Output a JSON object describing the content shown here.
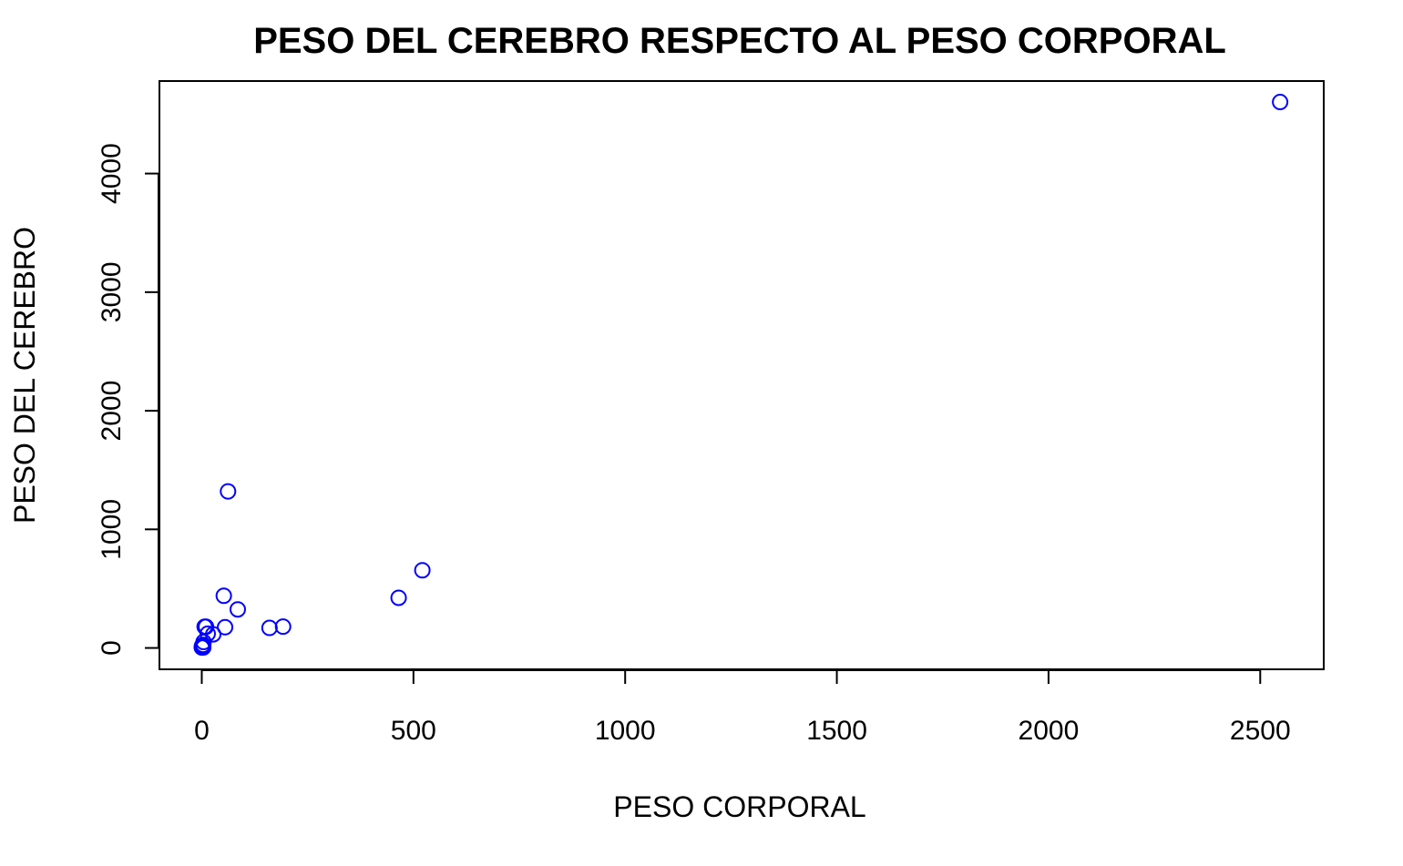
{
  "chart_data": {
    "type": "scatter",
    "title": "PESO DEL CEREBRO RESPECTO AL PESO CORPORAL",
    "xlabel": "PESO CORPORAL",
    "ylabel": "PESO DEL CEREBRO",
    "xlim": [
      -100,
      2650
    ],
    "ylim": [
      -180,
      4780
    ],
    "x_ticks": [
      0,
      500,
      1000,
      1500,
      2000,
      2500
    ],
    "y_ticks": [
      0,
      1000,
      2000,
      3000,
      4000
    ],
    "x_tick_labels": [
      "0",
      "500",
      "1000",
      "1500",
      "2000",
      "2500"
    ],
    "y_tick_labels": [
      "0",
      "1000",
      "2000",
      "3000",
      "4000"
    ],
    "grid": false,
    "point_color": "#0000ff",
    "points": [
      {
        "x": 2547,
        "y": 4603
      },
      {
        "x": 62,
        "y": 1320
      },
      {
        "x": 521,
        "y": 655
      },
      {
        "x": 465,
        "y": 423
      },
      {
        "x": 52,
        "y": 440
      },
      {
        "x": 85,
        "y": 325
      },
      {
        "x": 192,
        "y": 180
      },
      {
        "x": 160,
        "y": 169
      },
      {
        "x": 55,
        "y": 175
      },
      {
        "x": 27,
        "y": 115
      },
      {
        "x": 10,
        "y": 179
      },
      {
        "x": 6.8,
        "y": 179
      },
      {
        "x": 14,
        "y": 120
      },
      {
        "x": 4.2,
        "y": 50
      },
      {
        "x": 3.5,
        "y": 3.9
      },
      {
        "x": 0.5,
        "y": 5.5
      },
      {
        "x": 1.0,
        "y": 6.6
      },
      {
        "x": 3.3,
        "y": 25.6
      },
      {
        "x": 2.0,
        "y": 12.3
      },
      {
        "x": 0.75,
        "y": 12.3
      },
      {
        "x": 1.35,
        "y": 8.1
      },
      {
        "x": 0.1,
        "y": 4.0
      },
      {
        "x": 0.48,
        "y": 15.5
      }
    ]
  }
}
